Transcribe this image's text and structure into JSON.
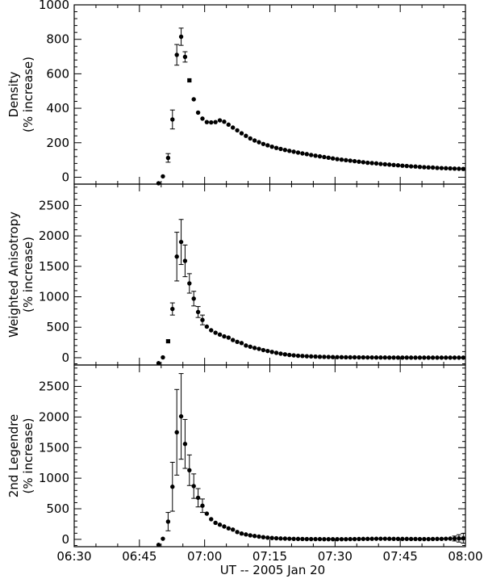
{
  "figure": {
    "xlabel": "UT -- 2005 Jan 20",
    "x_tick_labels": [
      "06:30",
      "06:45",
      "07:00",
      "07:15",
      "07:30",
      "07:45",
      "08:00"
    ]
  },
  "chart_data": [
    {
      "type": "scatter",
      "ylabel": [
        "Density",
        "(% increase)"
      ],
      "xlim_minutes_after_0630": [
        0,
        90
      ],
      "ylim": [
        -40,
        1000
      ],
      "y_ticks": [
        0,
        200,
        400,
        600,
        800,
        1000
      ],
      "x": [
        19.4,
        20.4,
        21.6,
        22.6,
        23.6,
        24.6,
        25.5,
        26.5,
        27.5,
        28.5,
        29.5,
        30.5,
        31.5,
        32.5,
        33.5,
        34.5,
        35.5,
        36.5,
        37.5,
        38.5,
        39.5,
        40.5,
        41.5,
        42.5,
        43.5,
        44.5,
        45.5,
        46.5,
        47.5,
        48.5,
        49.5,
        50.5,
        51.5,
        52.5,
        53.5,
        54.5,
        55.5,
        56.5,
        57.5,
        58.5,
        59.5,
        60.5,
        61.5,
        62.5,
        63.5,
        64.5,
        65.5,
        66.5,
        67.5,
        68.5,
        69.5,
        70.5,
        71.5,
        72.5,
        73.5,
        74.5,
        75.5,
        76.5,
        77.5,
        78.5,
        79.5,
        80.5,
        81.5,
        82.5,
        83.5,
        84.5,
        85.5,
        86.5,
        87.5,
        88.5,
        89.5
      ],
      "y": [
        -35,
        5,
        112,
        335,
        710,
        815,
        698,
        562,
        452,
        375,
        340,
        320,
        318,
        320,
        330,
        322,
        305,
        288,
        272,
        255,
        240,
        225,
        213,
        203,
        193,
        185,
        177,
        170,
        164,
        158,
        153,
        148,
        143,
        138,
        134,
        129,
        125,
        121,
        117,
        113,
        109,
        105,
        102,
        99,
        96,
        93,
        90,
        87,
        84,
        82,
        80,
        77,
        75,
        73,
        71,
        69,
        67,
        65,
        63,
        62,
        60,
        58,
        57,
        56,
        54,
        53,
        52,
        51,
        50,
        49,
        48
      ],
      "yerr": [
        0,
        0,
        25,
        55,
        60,
        50,
        30,
        0,
        0,
        0,
        0,
        0,
        0,
        0,
        0,
        0,
        0,
        0,
        0,
        0,
        0,
        0,
        0,
        0,
        0,
        0,
        0,
        0,
        0,
        0,
        0,
        0,
        0,
        0,
        0,
        0,
        0,
        0,
        0,
        0,
        0,
        0,
        0,
        0,
        0,
        0,
        0,
        0,
        0,
        0,
        0,
        0,
        0,
        0,
        0,
        0,
        0,
        0,
        0,
        0,
        0,
        0,
        0,
        0,
        0,
        0,
        0,
        0,
        0,
        0,
        0
      ],
      "squares": [
        7
      ]
    },
    {
      "type": "scatter",
      "ylabel": [
        "Weighted Anisotropy",
        "(% increase)"
      ],
      "xlim_minutes_after_0630": [
        0,
        90
      ],
      "ylim": [
        -120,
        2850
      ],
      "y_ticks": [
        0,
        500,
        1000,
        1500,
        2000,
        2500
      ],
      "x": [
        19.4,
        20.4,
        21.6,
        22.6,
        23.6,
        24.6,
        25.5,
        26.5,
        27.5,
        28.5,
        29.5,
        30.5,
        31.5,
        32.5,
        33.5,
        34.5,
        35.5,
        36.5,
        37.5,
        38.5,
        39.5,
        40.5,
        41.5,
        42.5,
        43.5,
        44.5,
        45.5,
        46.5,
        47.5,
        48.5,
        49.5,
        50.5,
        51.5,
        52.5,
        53.5,
        54.5,
        55.5,
        56.5,
        57.5,
        58.5,
        59.5,
        60.5,
        61.5,
        62.5,
        63.5,
        64.5,
        65.5,
        66.5,
        67.5,
        68.5,
        69.5,
        70.5,
        71.5,
        72.5,
        73.5,
        74.5,
        75.5,
        76.5,
        77.5,
        78.5,
        79.5,
        80.5,
        81.5,
        82.5,
        83.5,
        84.5,
        85.5,
        86.5,
        87.5,
        88.5,
        89.5
      ],
      "y": [
        -90,
        5,
        270,
        800,
        1660,
        1900,
        1590,
        1220,
        970,
        750,
        620,
        510,
        450,
        410,
        380,
        350,
        330,
        290,
        260,
        240,
        200,
        180,
        160,
        145,
        125,
        110,
        95,
        80,
        66,
        55,
        45,
        38,
        32,
        28,
        24,
        21,
        18,
        15,
        13,
        12,
        10,
        9,
        8,
        7,
        6,
        6,
        5,
        5,
        4,
        4,
        3,
        3,
        3,
        2,
        2,
        2,
        2,
        2,
        1,
        1,
        1,
        1,
        1,
        1,
        1,
        1,
        1,
        1,
        1,
        1,
        1
      ],
      "yerr": [
        0,
        0,
        0,
        100,
        400,
        370,
        260,
        160,
        120,
        90,
        80,
        0,
        0,
        0,
        0,
        0,
        0,
        0,
        0,
        0,
        0,
        0,
        0,
        0,
        0,
        0,
        0,
        0,
        0,
        0,
        0,
        0,
        0,
        0,
        0,
        0,
        0,
        0,
        0,
        0,
        0,
        0,
        0,
        0,
        0,
        0,
        0,
        0,
        0,
        0,
        0,
        0,
        0,
        0,
        0,
        0,
        0,
        0,
        0,
        0,
        0,
        0,
        0,
        0,
        0,
        0,
        0,
        0,
        0,
        0,
        0
      ],
      "squares": [
        2
      ]
    },
    {
      "type": "scatter",
      "ylabel": [
        "2nd Legendre",
        "(% increase)"
      ],
      "xlim_minutes_after_0630": [
        0,
        90
      ],
      "ylim": [
        -120,
        2850
      ],
      "y_ticks": [
        0,
        500,
        1000,
        1500,
        2000,
        2500
      ],
      "x": [
        19.4,
        20.4,
        21.6,
        22.6,
        23.6,
        24.6,
        25.5,
        26.5,
        27.5,
        28.5,
        29.5,
        30.5,
        31.5,
        32.5,
        33.5,
        34.5,
        35.5,
        36.5,
        37.5,
        38.5,
        39.5,
        40.5,
        41.5,
        42.5,
        43.5,
        44.5,
        45.5,
        46.5,
        47.5,
        48.5,
        49.5,
        50.5,
        51.5,
        52.5,
        53.5,
        54.5,
        55.5,
        56.5,
        57.5,
        58.5,
        59.5,
        60.5,
        61.5,
        62.5,
        63.5,
        64.5,
        65.5,
        66.5,
        67.5,
        68.5,
        69.5,
        70.5,
        71.5,
        72.5,
        73.5,
        74.5,
        75.5,
        76.5,
        77.5,
        78.5,
        79.5,
        80.5,
        81.5,
        82.5,
        83.5,
        84.5,
        85.5,
        86.5,
        87.5,
        88.5,
        89.5
      ],
      "y": [
        -90,
        10,
        290,
        860,
        1750,
        2010,
        1560,
        1130,
        870,
        680,
        550,
        420,
        330,
        270,
        240,
        210,
        180,
        160,
        120,
        95,
        80,
        65,
        55,
        45,
        35,
        28,
        22,
        18,
        14,
        12,
        10,
        8,
        7,
        6,
        5,
        5,
        4,
        4,
        3,
        3,
        3,
        3,
        3,
        3,
        4,
        5,
        6,
        7,
        8,
        9,
        10,
        10,
        10,
        9,
        8,
        8,
        7,
        7,
        6,
        6,
        5,
        5,
        5,
        6,
        7,
        8,
        10,
        12,
        14,
        16,
        18
      ],
      "yerr": [
        0,
        0,
        150,
        400,
        700,
        700,
        400,
        250,
        200,
        150,
        110,
        0,
        0,
        0,
        0,
        0,
        0,
        0,
        0,
        0,
        0,
        0,
        0,
        0,
        0,
        0,
        0,
        0,
        0,
        0,
        0,
        0,
        0,
        0,
        0,
        0,
        0,
        0,
        0,
        0,
        0,
        0,
        0,
        0,
        0,
        0,
        0,
        0,
        0,
        0,
        0,
        0,
        0,
        0,
        0,
        0,
        0,
        0,
        0,
        0,
        0,
        0,
        0,
        0,
        0,
        0,
        0,
        0,
        40,
        60,
        80
      ],
      "squares": []
    }
  ]
}
